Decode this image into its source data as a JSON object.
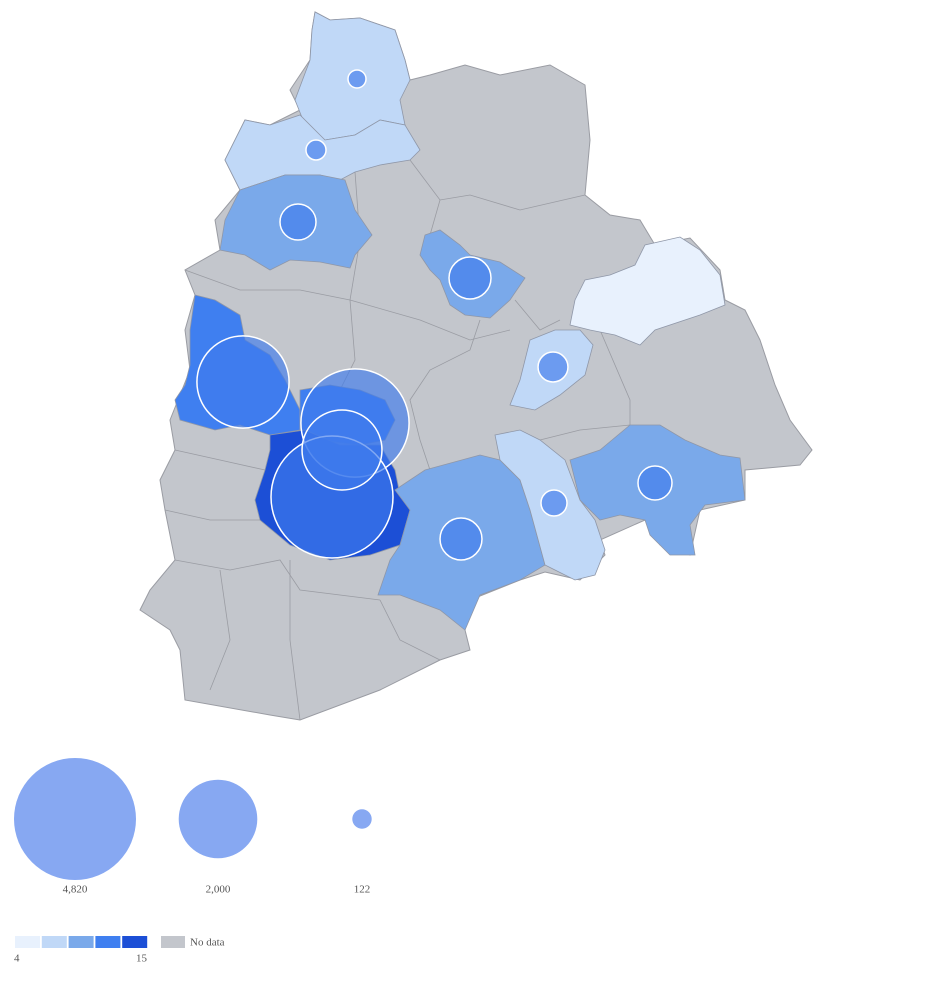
{
  "map": {
    "regions": [
      {
        "value": 7,
        "bubble": 105
      },
      {
        "value": 7,
        "bubble": 130
      },
      {
        "value": 9,
        "bubble": 420
      },
      {
        "value": 9,
        "bubble": 570
      },
      {
        "value": 5
      },
      {
        "value": 7,
        "bubble": 290
      },
      {
        "value": 12,
        "bubble": 2750
      },
      {
        "value": 12,
        "bubble": 3790
      },
      {
        "value": 14,
        "bubble": 4820
      },
      {
        "value": 9,
        "bubble": 570
      },
      {
        "value": 7,
        "bubble": 220
      },
      {
        "value": 9,
        "bubble": 375
      }
    ],
    "hyderabad_bubble": 2070,
    "size_legend": [
      {
        "value": 4820,
        "label": "4,820"
      },
      {
        "value": 2000,
        "label": "2,000"
      },
      122
    ],
    "color_legend": {
      "min": 4,
      "max": 15,
      "colors": [
        "#e8f1fd",
        "#c0d8f7",
        "#7aa9ea",
        "#3f7ff0",
        "#1c4fd6"
      ],
      "no_data_label": "No data",
      "no_data_color": "#c3c6cc"
    },
    "bubble_color": "#3f7bec",
    "size_legend_color": "#87a8f2"
  }
}
